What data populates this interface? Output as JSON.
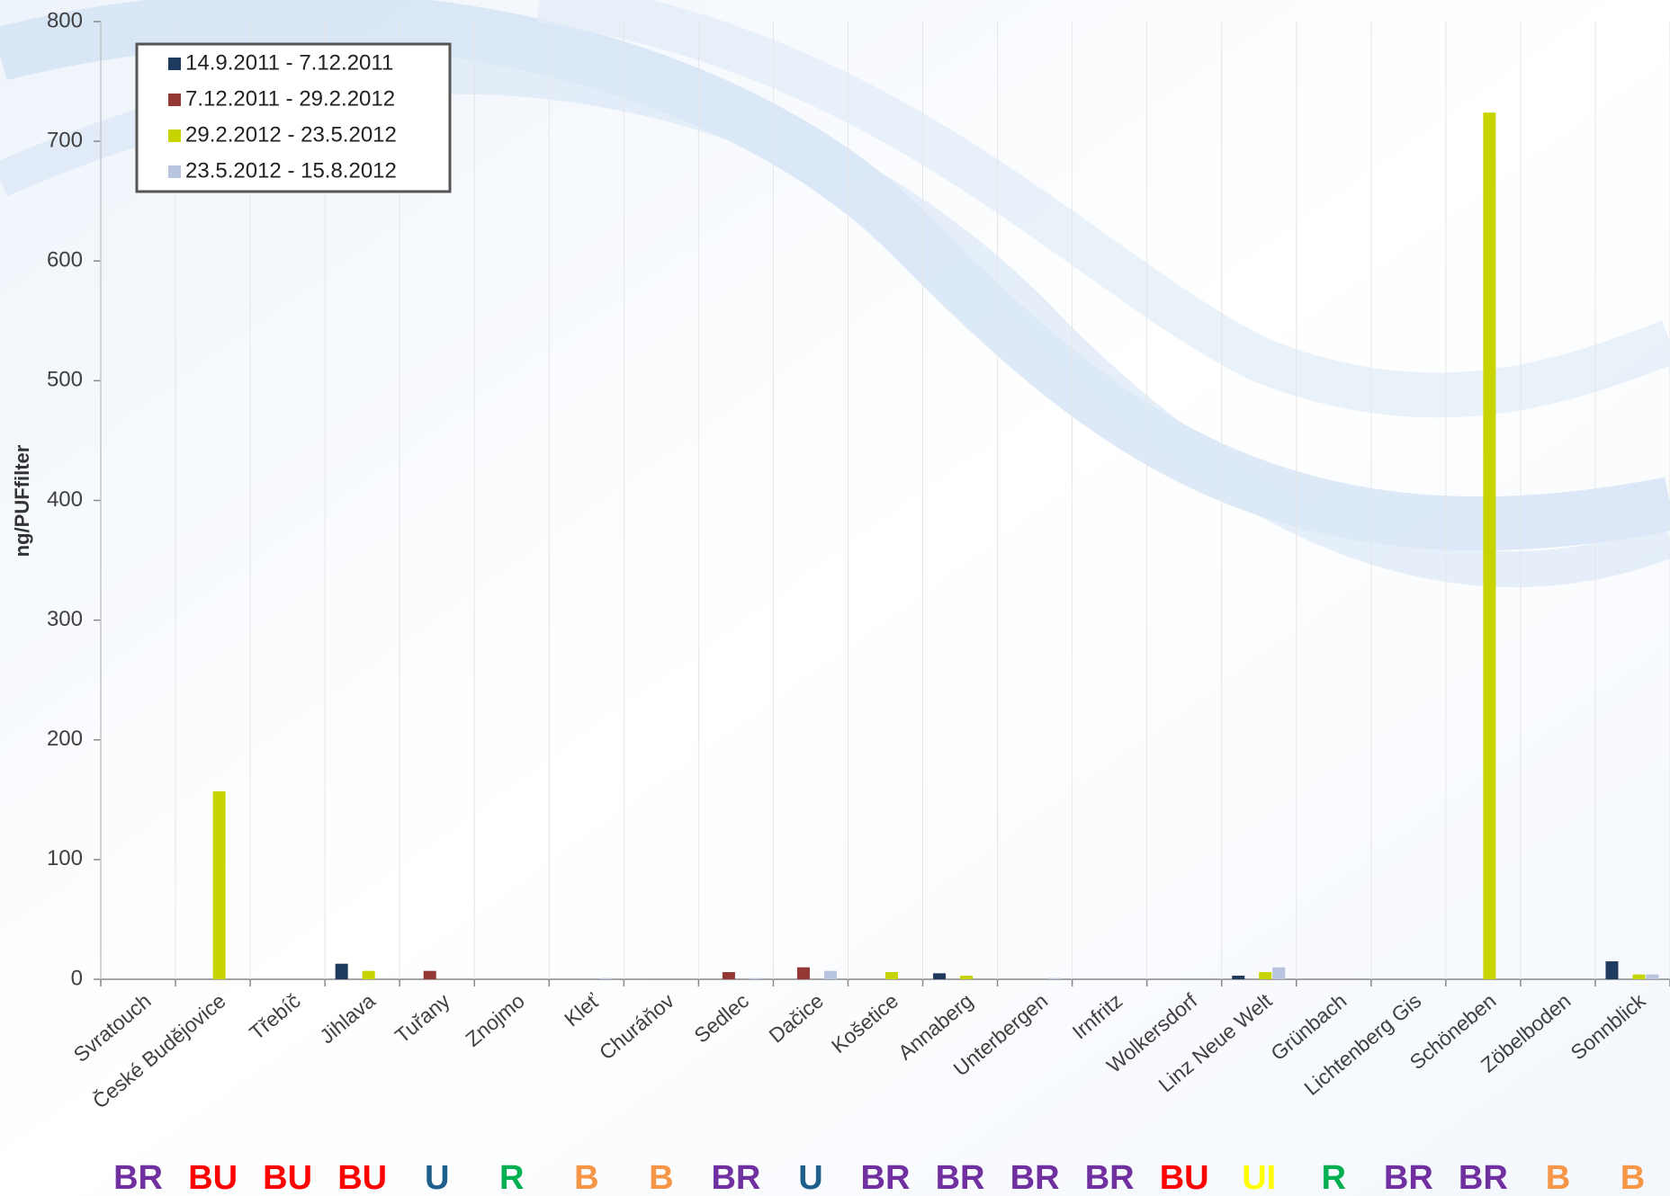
{
  "chart_data": {
    "type": "bar",
    "y_label": "ng/PUFfilter",
    "categories": [
      "Svratouch",
      "České Budějovice",
      "Třebíč",
      "Jihlava",
      "Tuřany",
      "Znojmo",
      "Kleť",
      "Churáňov",
      "Sedlec",
      "Dačice",
      "Košetice",
      "Annaberg",
      "Unterbergen",
      "Irnfritz",
      "Wolkersdorf",
      "Linz Neue Welt",
      "Grünbach",
      "Lichtenberg Gis",
      "Schöneben",
      "Zöbelboden",
      "Sonnblick"
    ],
    "series": [
      {
        "name": "14.9.2011 - 7.12.2011",
        "color": "#1f3a5f",
        "values": [
          0,
          0,
          0,
          13,
          0,
          0,
          0,
          0,
          0,
          0,
          0,
          5,
          0,
          0,
          0,
          3,
          0,
          0,
          0,
          0,
          15
        ]
      },
      {
        "name": "7.12.2011 - 29.2.2012",
        "color": "#953735",
        "values": [
          0,
          0,
          0,
          0,
          7,
          0,
          0,
          0,
          6,
          10,
          0,
          0,
          0,
          0,
          0,
          0,
          0,
          0,
          0,
          0,
          0
        ]
      },
      {
        "name": "29.2.2012 - 23.5.2012",
        "color": "#c8d400",
        "values": [
          0,
          157,
          0,
          7,
          0,
          0,
          0,
          0,
          0,
          0,
          6,
          3,
          0,
          0,
          0,
          6,
          0,
          0,
          724,
          0,
          4
        ]
      },
      {
        "name": "23.5.2012 - 15.8.2012",
        "color": "#b9c4e0",
        "values": [
          0,
          0,
          0,
          0,
          0,
          0,
          1,
          0,
          1,
          7,
          0,
          0,
          1,
          0,
          0,
          10,
          0,
          0,
          0,
          0,
          4
        ]
      }
    ],
    "ylim": [
      0,
      800
    ],
    "yticks": [
      0,
      100,
      200,
      300,
      400,
      500,
      600,
      700,
      800
    ],
    "site_types": [
      "BR",
      "BU",
      "BU",
      "BU",
      "U",
      "R",
      "B",
      "B",
      "BR",
      "U",
      "BR",
      "BR",
      "BR",
      "BR",
      "BU",
      "UI",
      "R",
      "BR",
      "BR",
      "B",
      "B"
    ],
    "site_type_colors": {
      "BR": "#7030a0",
      "BU": "#ff0000",
      "U": "#1f5f8b",
      "R": "#00b050",
      "B": "#f79646",
      "UI": "#ffff00"
    }
  }
}
